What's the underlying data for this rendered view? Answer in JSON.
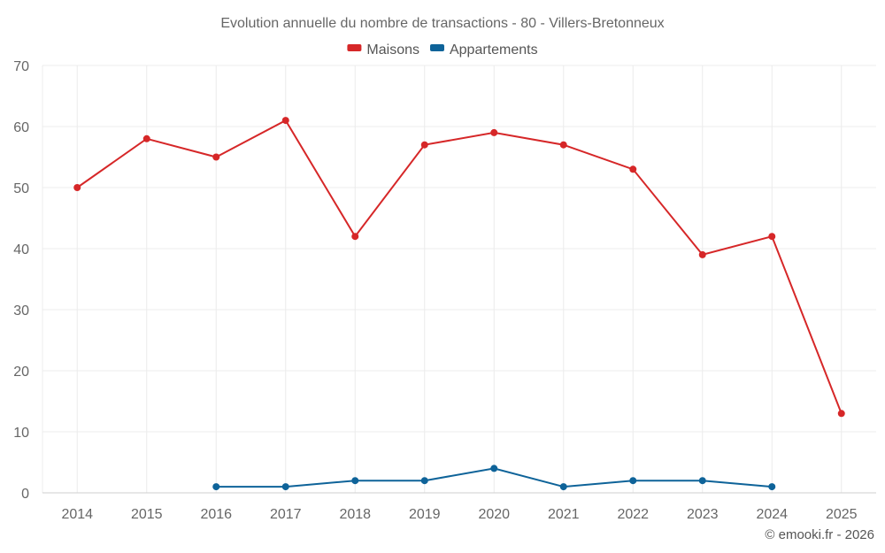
{
  "chart_data": {
    "type": "line",
    "title": "Evolution annuelle du nombre de transactions - 80 - Villers-Bretonneux",
    "xlabel": "",
    "ylabel": "",
    "ylim": [
      0,
      70
    ],
    "yticks": [
      0,
      10,
      20,
      30,
      40,
      50,
      60,
      70
    ],
    "categories": [
      "2014",
      "2015",
      "2016",
      "2017",
      "2018",
      "2019",
      "2020",
      "2021",
      "2022",
      "2023",
      "2024",
      "2025"
    ],
    "grid": true,
    "legend_position": "top-center",
    "series": [
      {
        "name": "Maisons",
        "color": "#d62728",
        "values": [
          50,
          58,
          55,
          61,
          42,
          57,
          59,
          57,
          53,
          39,
          42,
          13
        ]
      },
      {
        "name": "Appartements",
        "color": "#0e6399",
        "values": [
          null,
          null,
          1,
          1,
          2,
          2,
          4,
          1,
          2,
          2,
          1,
          null
        ]
      }
    ]
  },
  "credit": "© emooki.fr - 2026"
}
